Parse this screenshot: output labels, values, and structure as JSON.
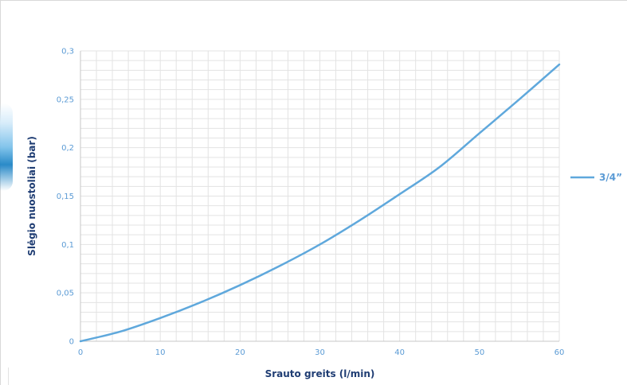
{
  "chart_data": {
    "type": "line",
    "title": "",
    "xlabel": "Srauto greits (l/min)",
    "ylabel": "Slėgio nuostoliai (bar)",
    "xlim": [
      0,
      60
    ],
    "ylim": [
      0,
      0.3
    ],
    "x_ticks": [
      "0",
      "10",
      "20",
      "30",
      "40",
      "50",
      "60"
    ],
    "y_ticks": [
      "0",
      "0,05",
      "0,1",
      "0,15",
      "0,2",
      "0,25",
      "0,3"
    ],
    "grid": true,
    "legend_position": "right",
    "series": [
      {
        "name": "3/4”",
        "color": "#5fa8dc",
        "x": [
          0,
          5,
          10,
          15,
          20,
          25,
          30,
          35,
          40,
          45,
          50,
          55,
          60
        ],
        "y": [
          0,
          0.01,
          0.024,
          0.04,
          0.058,
          0.078,
          0.1,
          0.125,
          0.152,
          0.18,
          0.215,
          0.25,
          0.286
        ]
      }
    ]
  }
}
